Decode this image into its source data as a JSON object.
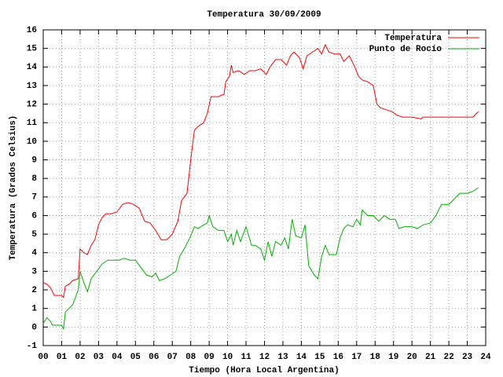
{
  "chart_data": {
    "type": "line",
    "title": "Temperatura 30/09/2009",
    "x_label": "Tiempo (Hora Local Argentina)",
    "y_label": "Temperatura (Grados Celsius)",
    "xlim": [
      0,
      24
    ],
    "xticks": [
      {
        "value": 0,
        "label": "00"
      },
      {
        "value": 1,
        "label": "01"
      },
      {
        "value": 2,
        "label": "02"
      },
      {
        "value": 3,
        "label": "03"
      },
      {
        "value": 4,
        "label": "04"
      },
      {
        "value": 5,
        "label": "05"
      },
      {
        "value": 6,
        "label": "06"
      },
      {
        "value": 7,
        "label": "07"
      },
      {
        "value": 8,
        "label": "08"
      },
      {
        "value": 9,
        "label": "09"
      },
      10,
      11,
      12,
      13,
      14,
      15,
      16,
      17,
      18,
      19,
      20,
      21,
      22,
      23,
      24
    ],
    "ylim": [
      -1,
      16
    ],
    "yticks": [
      -1,
      0,
      1,
      2,
      3,
      4,
      5,
      6,
      7,
      8,
      9,
      10,
      11,
      12,
      13,
      14,
      15,
      16
    ],
    "grid": true,
    "legend": "upper right",
    "series": [
      {
        "name": "Temperatura",
        "color": "#ff0000",
        "x": [
          0,
          0.2,
          0.4,
          0.6,
          0.8,
          1.0,
          1.1,
          1.2,
          1.4,
          1.6,
          1.9,
          2.0,
          2.2,
          2.4,
          2.6,
          2.8,
          3.0,
          3.2,
          3.4,
          3.7,
          4.0,
          4.3,
          4.6,
          4.9,
          5.2,
          5.5,
          5.8,
          6.1,
          6.4,
          6.7,
          7.0,
          7.3,
          7.5,
          7.8,
          8.0,
          8.2,
          8.4,
          8.7,
          8.9,
          9.1,
          9.3,
          9.5,
          9.7,
          9.8,
          9.9,
          10.1,
          10.2,
          10.3,
          10.6,
          10.9,
          11.2,
          11.5,
          11.8,
          12.1,
          12.3,
          12.6,
          12.9,
          13.2,
          13.4,
          13.6,
          13.9,
          14.1,
          14.3,
          14.6,
          14.9,
          15.1,
          15.3,
          15.5,
          15.8,
          16.1,
          16.3,
          16.6,
          16.9,
          17.1,
          17.3,
          17.6,
          17.9,
          18.1,
          18.3,
          18.6,
          18.9,
          19.2,
          19.5,
          20.0,
          20.5,
          20.6,
          21.0,
          22.0,
          23.0,
          23.3,
          23.5,
          23.6
        ],
        "values": [
          2.4,
          2.3,
          2.1,
          1.7,
          1.7,
          1.7,
          1.6,
          2.2,
          2.3,
          2.5,
          2.6,
          4.2,
          4.0,
          3.9,
          4.4,
          4.7,
          5.5,
          5.9,
          6.1,
          6.1,
          6.2,
          6.6,
          6.7,
          6.6,
          6.4,
          5.7,
          5.6,
          5.2,
          4.7,
          4.7,
          5.0,
          5.7,
          6.8,
          7.2,
          9.0,
          10.6,
          10.8,
          11.0,
          11.5,
          12.4,
          12.4,
          12.4,
          12.5,
          12.5,
          13.2,
          13.5,
          14.1,
          13.7,
          13.8,
          13.6,
          13.8,
          13.8,
          13.9,
          13.6,
          14.0,
          14.4,
          14.4,
          14.1,
          14.6,
          14.8,
          14.5,
          13.9,
          14.6,
          14.8,
          15.0,
          14.7,
          15.2,
          14.8,
          14.7,
          14.7,
          14.3,
          14.6,
          14.0,
          13.5,
          13.3,
          13.2,
          13.0,
          12.0,
          11.8,
          11.7,
          11.6,
          11.4,
          11.3,
          11.3,
          11.2,
          11.3,
          11.3,
          11.3,
          11.3,
          11.3,
          11.5,
          11.6
        ]
      },
      {
        "name": "Punto de Rocío",
        "color": "#00b000",
        "x": [
          0,
          0.2,
          0.4,
          0.5,
          0.8,
          1.0,
          1.1,
          1.2,
          1.4,
          1.6,
          1.9,
          2.0,
          2.2,
          2.4,
          2.6,
          2.9,
          3.2,
          3.5,
          3.8,
          4.1,
          4.4,
          4.7,
          5.0,
          5.3,
          5.6,
          5.9,
          6.1,
          6.3,
          6.6,
          6.9,
          7.2,
          7.4,
          7.7,
          8.0,
          8.2,
          8.4,
          8.7,
          8.9,
          9.0,
          9.2,
          9.5,
          9.8,
          10.0,
          10.2,
          10.3,
          10.5,
          10.7,
          11.0,
          11.3,
          11.5,
          11.8,
          12.0,
          12.2,
          12.4,
          12.6,
          12.9,
          13.1,
          13.3,
          13.5,
          13.7,
          14.0,
          14.2,
          14.4,
          14.7,
          14.9,
          15.1,
          15.3,
          15.5,
          15.9,
          16.1,
          16.3,
          16.5,
          16.8,
          17.0,
          17.2,
          17.3,
          17.6,
          17.9,
          18.2,
          18.5,
          18.8,
          19.1,
          19.3,
          19.6,
          20.0,
          20.3,
          20.6,
          21.0,
          21.3,
          21.6,
          22.0,
          22.3,
          22.6,
          23.0,
          23.3,
          23.6
        ],
        "values": [
          0.2,
          0.5,
          0.3,
          0.1,
          0.1,
          0.1,
          -0.1,
          0.8,
          1.0,
          1.2,
          2.0,
          3.0,
          2.4,
          1.9,
          2.6,
          3.0,
          3.4,
          3.6,
          3.6,
          3.6,
          3.7,
          3.6,
          3.6,
          3.2,
          2.8,
          2.7,
          2.9,
          2.5,
          2.6,
          2.8,
          3.0,
          3.8,
          4.3,
          4.9,
          5.4,
          5.3,
          5.5,
          5.6,
          6.0,
          5.4,
          5.2,
          5.2,
          4.6,
          5.0,
          4.4,
          5.2,
          4.6,
          5.4,
          4.4,
          4.4,
          4.2,
          3.6,
          4.6,
          3.8,
          4.6,
          4.4,
          4.8,
          4.2,
          5.8,
          4.9,
          4.8,
          5.5,
          3.3,
          2.8,
          2.6,
          3.8,
          4.4,
          3.9,
          3.9,
          4.8,
          5.3,
          5.5,
          5.4,
          5.8,
          5.5,
          6.3,
          6.0,
          6.0,
          5.7,
          6.0,
          5.8,
          5.8,
          5.3,
          5.4,
          5.4,
          5.3,
          5.5,
          5.6,
          6.0,
          6.6,
          6.6,
          6.9,
          7.2,
          7.2,
          7.3,
          7.5
        ]
      }
    ]
  }
}
